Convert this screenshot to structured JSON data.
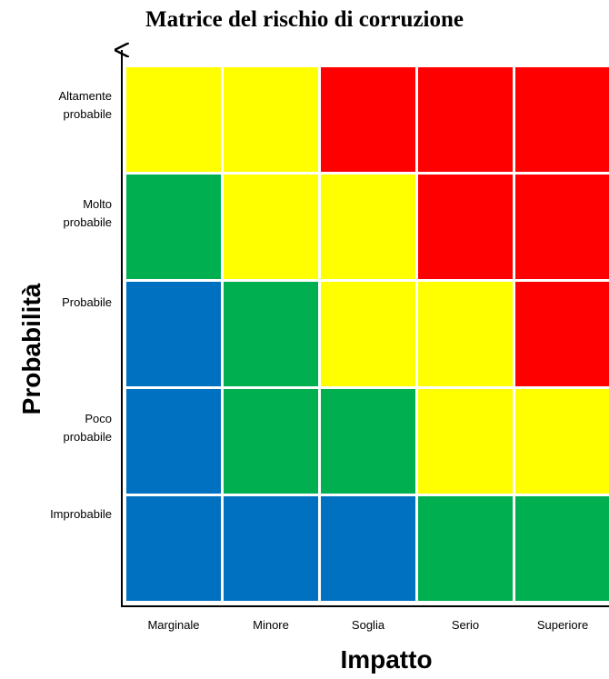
{
  "title": "Matrice del rischio di corruzione",
  "chart_data": {
    "type": "heatmap",
    "title": "Matrice del rischio di corruzione",
    "xlabel": "Impatto",
    "ylabel": "Probabilità",
    "x_categories": [
      "Marginale",
      "Minore",
      "Soglia",
      "Serio",
      "Superiore"
    ],
    "y_categories": [
      [
        "Altamente",
        "probabile"
      ],
      [
        "Molto",
        "probabile"
      ],
      [
        "Probabile"
      ],
      [
        "Poco",
        "probabile"
      ],
      [
        "Improbabile"
      ]
    ],
    "levels": {
      "blue": "#0070C0",
      "green": "#00B050",
      "yellow": "#FFFF00",
      "red": "#FF0000"
    },
    "matrix": [
      [
        "yellow",
        "yellow",
        "red",
        "red",
        "red"
      ],
      [
        "green",
        "yellow",
        "yellow",
        "red",
        "red"
      ],
      [
        "blue",
        "green",
        "yellow",
        "yellow",
        "red"
      ],
      [
        "blue",
        "green",
        "green",
        "yellow",
        "yellow"
      ],
      [
        "blue",
        "blue",
        "blue",
        "green",
        "green"
      ]
    ]
  }
}
